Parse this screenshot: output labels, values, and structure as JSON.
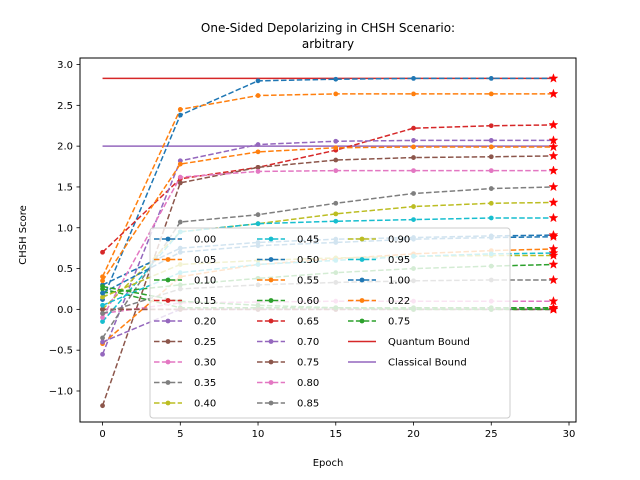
{
  "chart_data": {
    "type": "line",
    "title": "One-Sided Depolarizing in CHSH Scenario:",
    "subtitle": "arbitrary",
    "xlabel": "Epoch",
    "ylabel": "CHSH Score",
    "xlim": [
      -1.45,
      30.45
    ],
    "ylim": [
      -1.38,
      3.08
    ],
    "xticks": [
      0,
      5,
      10,
      15,
      20,
      25,
      30
    ],
    "yticks": [
      -1.0,
      -0.5,
      0.0,
      0.5,
      1.0,
      1.5,
      2.0,
      2.5,
      3.0
    ],
    "ytick_labels": [
      "−1.0",
      "−0.5",
      "0.0",
      "0.5",
      "1.0",
      "1.5",
      "2.0",
      "2.5",
      "3.0"
    ],
    "x": [
      0,
      5,
      10,
      15,
      20,
      25,
      29
    ],
    "grid": false,
    "legend_placement": "lower center, 3 columns",
    "series": [
      {
        "name": "0.00",
        "color": "#1f77b4",
        "values": [
          0.12,
          2.38,
          2.8,
          2.82,
          2.83,
          2.83,
          2.83
        ]
      },
      {
        "name": "0.05",
        "color": "#ff7f0e",
        "values": [
          0.4,
          2.45,
          2.62,
          2.64,
          2.64,
          2.64,
          2.64
        ]
      },
      {
        "name": "0.10",
        "color": "#2ca02c",
        "values": [
          0.25,
          0.02,
          0.02,
          0.02,
          0.02,
          0.02,
          0.02
        ]
      },
      {
        "name": "0.15",
        "color": "#d62728",
        "values": [
          0.7,
          1.6,
          1.74,
          1.95,
          2.22,
          2.25,
          2.26
        ]
      },
      {
        "name": "0.20",
        "color": "#9467bd",
        "values": [
          -0.55,
          1.82,
          2.02,
          2.06,
          2.07,
          2.07,
          2.07
        ]
      },
      {
        "name": "0.25",
        "color": "#8c564b",
        "values": [
          -1.18,
          1.55,
          1.74,
          1.83,
          1.86,
          1.87,
          1.88
        ]
      },
      {
        "name": "0.30",
        "color": "#e377c2",
        "values": [
          -0.05,
          0.08,
          0.09,
          0.1,
          0.1,
          0.1,
          0.1
        ]
      },
      {
        "name": "0.35",
        "color": "#7f7f7f",
        "values": [
          -0.35,
          1.07,
          1.16,
          1.3,
          1.42,
          1.48,
          1.5
        ]
      },
      {
        "name": "0.40",
        "color": "#bcbd22",
        "values": [
          0.0,
          0.95,
          1.05,
          1.17,
          1.26,
          1.3,
          1.31
        ]
      },
      {
        "name": "0.45",
        "color": "#17becf",
        "values": [
          -0.15,
          0.95,
          1.05,
          1.08,
          1.1,
          1.12,
          1.12
        ]
      },
      {
        "name": "0.50",
        "color": "#1f77b4",
        "values": [
          0.3,
          0.75,
          0.82,
          0.86,
          0.88,
          0.9,
          0.91
        ]
      },
      {
        "name": "0.55",
        "color": "#ff7f0e",
        "values": [
          -0.42,
          0.4,
          0.55,
          0.62,
          0.68,
          0.72,
          0.74
        ]
      },
      {
        "name": "0.60",
        "color": "#2ca02c",
        "values": [
          0.2,
          0.3,
          0.38,
          0.45,
          0.5,
          0.53,
          0.55
        ]
      },
      {
        "name": "0.65",
        "color": "#d62728",
        "values": [
          0.0,
          0.0,
          0.0,
          0.0,
          0.0,
          0.0,
          0.0
        ]
      },
      {
        "name": "0.70",
        "color": "#9467bd",
        "values": [
          -0.4,
          0.0,
          0.0,
          0.0,
          0.0,
          0.0,
          0.0
        ]
      },
      {
        "name": "0.75",
        "color": "#8c564b",
        "values": [
          0.0,
          0.0,
          0.0,
          0.0,
          0.0,
          0.0,
          0.0
        ]
      },
      {
        "name": "0.80",
        "color": "#e377c2",
        "values": [
          -0.1,
          1.62,
          1.69,
          1.7,
          1.7,
          1.7,
          1.7
        ]
      },
      {
        "name": "0.85",
        "color": "#7f7f7f",
        "values": [
          -0.05,
          0.25,
          0.3,
          0.33,
          0.35,
          0.36,
          0.36
        ]
      },
      {
        "name": "0.90",
        "color": "#bcbd22",
        "values": [
          0.15,
          0.55,
          0.6,
          0.63,
          0.65,
          0.66,
          0.66
        ]
      },
      {
        "name": "0.95",
        "color": "#17becf",
        "values": [
          0.05,
          0.45,
          0.55,
          0.6,
          0.65,
          0.68,
          0.69
        ]
      },
      {
        "name": "1.00",
        "color": "#1f77b4",
        "values": [
          0.2,
          0.7,
          0.78,
          0.82,
          0.86,
          0.88,
          0.89
        ]
      },
      {
        "name": "0.22",
        "color": "#ff7f0e",
        "values": [
          0.35,
          1.78,
          1.93,
          1.98,
          1.99,
          1.99,
          1.99
        ]
      },
      {
        "name": "0.75",
        "color": "#2ca02c",
        "values": [
          0.28,
          0.1,
          0.05,
          0.02,
          0.0,
          0.0,
          0.0
        ]
      }
    ],
    "bounds": [
      {
        "name": "Quantum Bound",
        "color": "#d62728",
        "value": 2.83
      },
      {
        "name": "Classical Bound",
        "color": "#9467bd",
        "value": 2.0
      }
    ]
  }
}
